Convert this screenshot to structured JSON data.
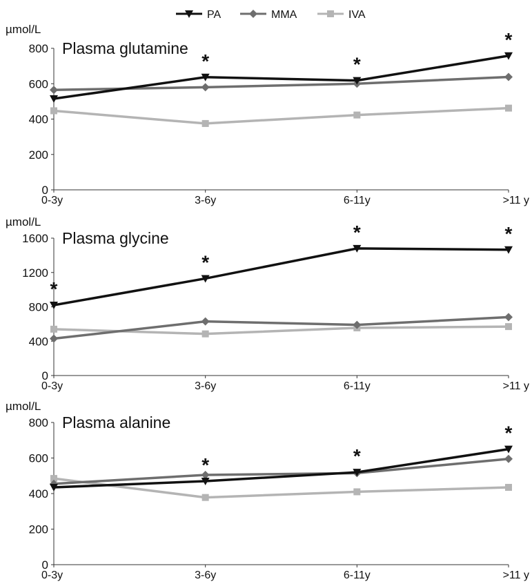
{
  "legend": [
    {
      "name": "PA",
      "color": "#111111",
      "marker": "triangle-down"
    },
    {
      "name": "MMA",
      "color": "#6e6e6e",
      "marker": "diamond"
    },
    {
      "name": "IVA",
      "color": "#b4b4b4",
      "marker": "square"
    }
  ],
  "chart_data": [
    {
      "type": "line",
      "title": "Plasma glutamine",
      "ylabel": "µmol/L",
      "categories": [
        "0-3y",
        "3-6y",
        "6-11y",
        ">11 y"
      ],
      "ylim": [
        0,
        800
      ],
      "yticks": [
        "0",
        "200",
        "400",
        "600",
        "800"
      ],
      "series": [
        {
          "name": "PA",
          "values": [
            515,
            637,
            618,
            758
          ]
        },
        {
          "name": "MMA",
          "values": [
            565,
            580,
            600,
            638
          ]
        },
        {
          "name": "IVA",
          "values": [
            447,
            375,
            423,
            462
          ]
        }
      ],
      "annotations": [
        {
          "text": "*",
          "category": "3-6y"
        },
        {
          "text": "*",
          "category": "6-11y"
        },
        {
          "text": "*",
          "category": ">11 y"
        }
      ]
    },
    {
      "type": "line",
      "title": "Plasma glycine",
      "ylabel": "µmol/L",
      "categories": [
        "0-3y",
        "3-6y",
        "6-11y",
        ">11 y"
      ],
      "ylim": [
        0,
        1600
      ],
      "yticks": [
        "0",
        "400",
        "800",
        "1200",
        "1600"
      ],
      "series": [
        {
          "name": "PA",
          "values": [
            820,
            1130,
            1480,
            1465
          ]
        },
        {
          "name": "MMA",
          "values": [
            430,
            630,
            590,
            680
          ]
        },
        {
          "name": "IVA",
          "values": [
            540,
            485,
            555,
            570
          ]
        }
      ],
      "annotations": [
        {
          "text": "*",
          "category": "0-3y"
        },
        {
          "text": "*",
          "category": "3-6y"
        },
        {
          "text": "*",
          "category": "6-11y"
        },
        {
          "text": "*",
          "category": ">11 y"
        }
      ]
    },
    {
      "type": "line",
      "title": "Plasma alanine",
      "ylabel": "µmol/L",
      "categories": [
        "0-3y",
        "3-6y",
        "6-11y",
        ">11 y"
      ],
      "ylim": [
        0,
        800
      ],
      "yticks": [
        "0",
        "200",
        "400",
        "600",
        "800"
      ],
      "series": [
        {
          "name": "PA",
          "values": [
            435,
            470,
            520,
            650
          ]
        },
        {
          "name": "MMA",
          "values": [
            455,
            505,
            515,
            595
          ]
        },
        {
          "name": "IVA",
          "values": [
            485,
            378,
            410,
            435
          ]
        }
      ],
      "annotations": [
        {
          "text": "*",
          "category": "3-6y"
        },
        {
          "text": "*",
          "category": "6-11y"
        },
        {
          "text": "*",
          "category": ">11 y"
        }
      ]
    }
  ]
}
